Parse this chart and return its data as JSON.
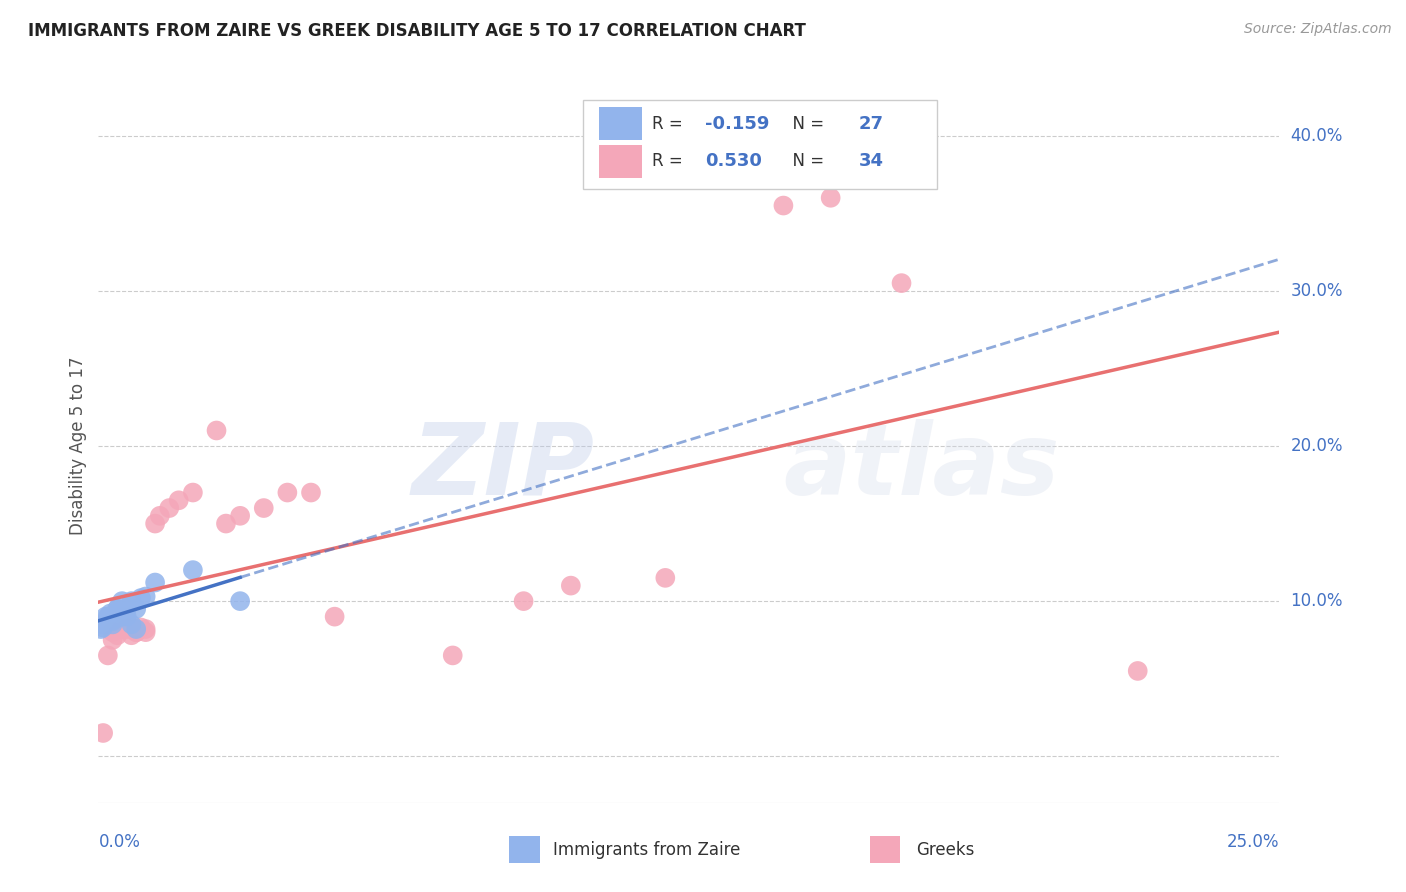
{
  "title": "IMMIGRANTS FROM ZAIRE VS GREEK DISABILITY AGE 5 TO 17 CORRELATION CHART",
  "source": "Source: ZipAtlas.com",
  "ylabel": "Disability Age 5 to 17",
  "xlim": [
    0.0,
    0.25
  ],
  "ylim": [
    -0.03,
    0.43
  ],
  "legend_r_zaire": "-0.159",
  "legend_n_zaire": "27",
  "legend_r_greek": "0.530",
  "legend_n_greek": "34",
  "color_zaire": "#92B4EC",
  "color_greek": "#F4A7B9",
  "color_zaire_line": "#4472C4",
  "color_greek_line": "#E87070",
  "watermark_zip": "ZIP",
  "watermark_atlas": "atlas",
  "grid_ytick_vals": [
    0.0,
    0.1,
    0.2,
    0.3,
    0.4
  ],
  "right_ytick_labels": [
    "",
    "10.0%",
    "20.0%",
    "30.0%",
    "40.0%"
  ],
  "zaire_x": [
    0.0005,
    0.001,
    0.001,
    0.0015,
    0.002,
    0.002,
    0.0025,
    0.003,
    0.003,
    0.003,
    0.004,
    0.004,
    0.004,
    0.005,
    0.005,
    0.005,
    0.006,
    0.006,
    0.007,
    0.007,
    0.008,
    0.008,
    0.009,
    0.01,
    0.012,
    0.02,
    0.03
  ],
  "zaire_y": [
    0.082,
    0.085,
    0.083,
    0.09,
    0.09,
    0.088,
    0.092,
    0.087,
    0.085,
    0.088,
    0.095,
    0.095,
    0.09,
    0.092,
    0.09,
    0.1,
    0.09,
    0.095,
    0.1,
    0.085,
    0.082,
    0.095,
    0.102,
    0.103,
    0.112,
    0.12,
    0.1
  ],
  "greek_x": [
    0.001,
    0.002,
    0.003,
    0.003,
    0.004,
    0.005,
    0.006,
    0.007,
    0.007,
    0.008,
    0.008,
    0.009,
    0.01,
    0.01,
    0.012,
    0.013,
    0.015,
    0.017,
    0.02,
    0.025,
    0.027,
    0.03,
    0.035,
    0.04,
    0.045,
    0.05,
    0.075,
    0.09,
    0.1,
    0.12,
    0.145,
    0.155,
    0.17,
    0.22
  ],
  "greek_y": [
    0.015,
    0.065,
    0.08,
    0.075,
    0.078,
    0.082,
    0.082,
    0.078,
    0.083,
    0.08,
    0.08,
    0.083,
    0.082,
    0.08,
    0.15,
    0.155,
    0.16,
    0.165,
    0.17,
    0.21,
    0.15,
    0.155,
    0.16,
    0.17,
    0.17,
    0.09,
    0.065,
    0.1,
    0.11,
    0.115,
    0.355,
    0.36,
    0.305,
    0.055
  ],
  "background_color": "#FFFFFF"
}
